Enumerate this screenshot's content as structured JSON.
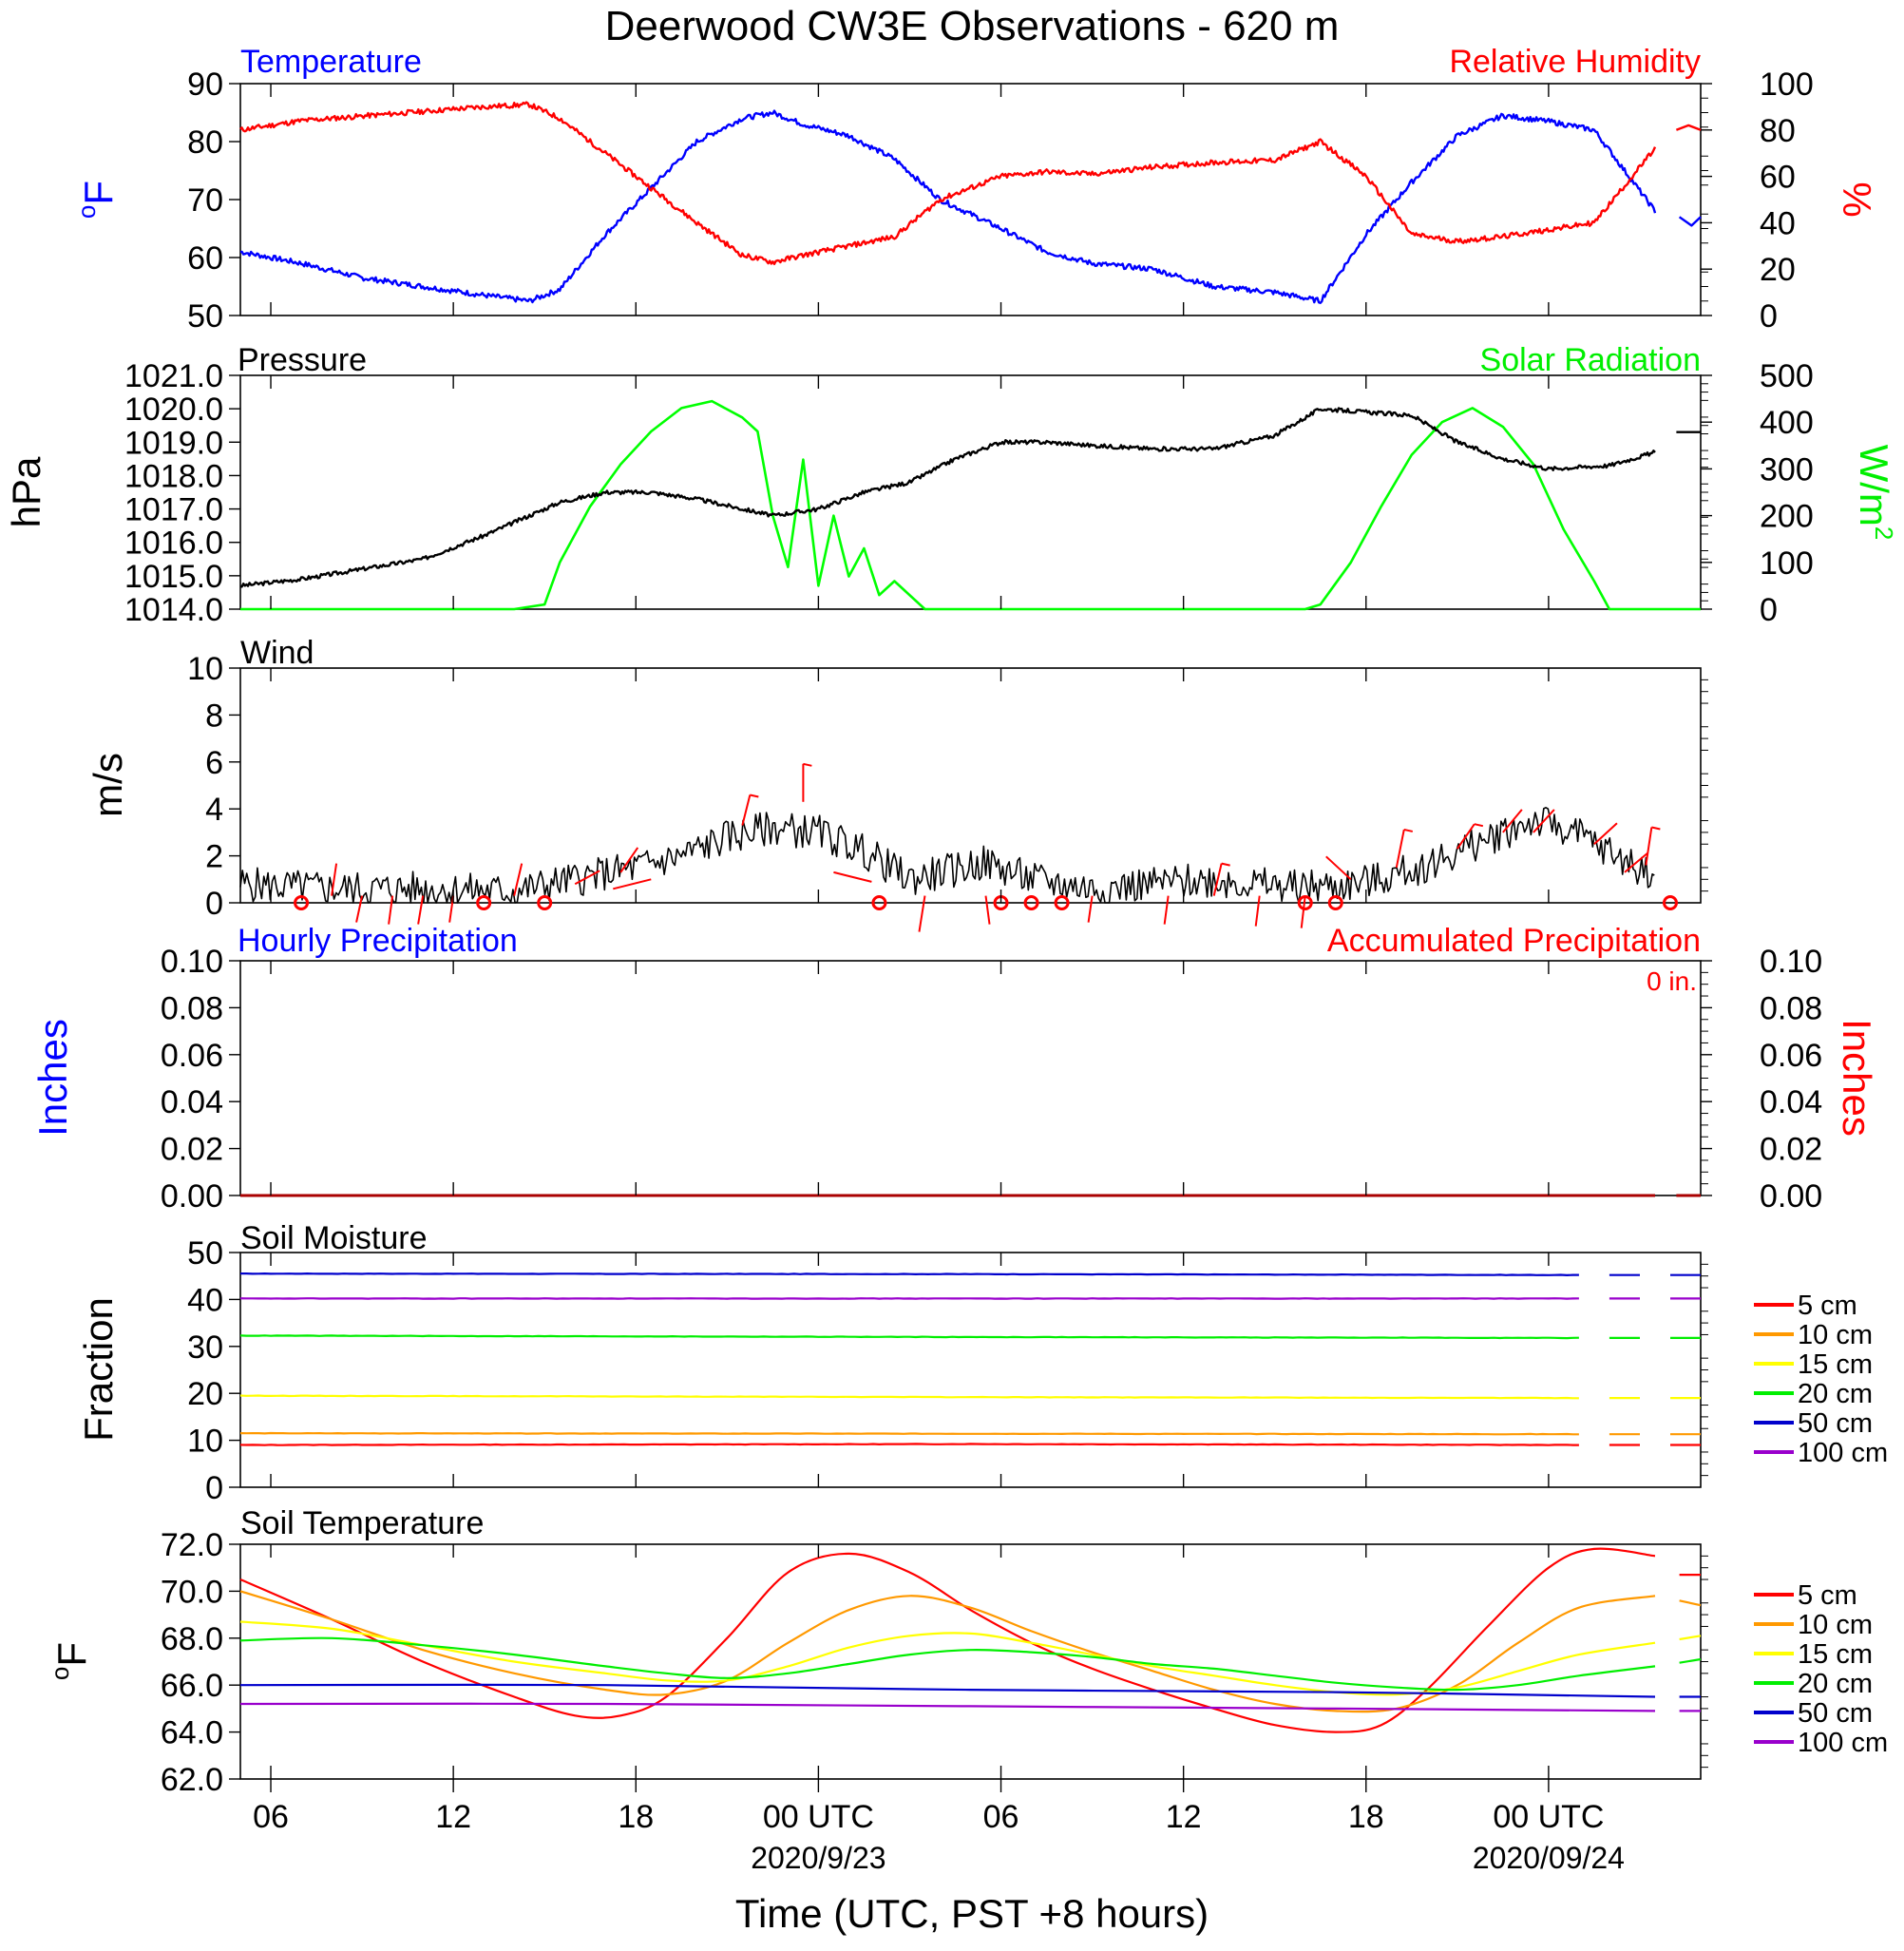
{
  "title": "Deerwood CW3E Observations - 620 m",
  "xaxis": {
    "label": "Time (UTC, PST +8 hours)",
    "ticks": [
      {
        "hour": 6,
        "label": "06",
        "date": ""
      },
      {
        "hour": 12,
        "label": "12",
        "date": ""
      },
      {
        "hour": 18,
        "label": "18",
        "date": ""
      },
      {
        "hour": 24,
        "label": "00 UTC",
        "date": "2020/9/23"
      },
      {
        "hour": 30,
        "label": "06",
        "date": ""
      },
      {
        "hour": 36,
        "label": "12",
        "date": ""
      },
      {
        "hour": 42,
        "label": "18",
        "date": ""
      },
      {
        "hour": 48,
        "label": "00 UTC",
        "date": "2020/09/24"
      }
    ]
  },
  "colors": {
    "temperature": "#0000ff",
    "humidity": "#ff0000",
    "pressure": "#000000",
    "solar": "#00ff00",
    "wind": "#000000",
    "barb": "#ff0000",
    "hourly_precip": "#0000ff",
    "accum_precip": "#ff0000",
    "depths": [
      "#ff0000",
      "#ff9900",
      "#ffff00",
      "#00ee00",
      "#0000cc",
      "#9900cc"
    ]
  },
  "panels": {
    "temp": {
      "left_title": "Temperature",
      "right_title": "Relative Humidity",
      "left_unit": "oF",
      "right_unit": "%",
      "left_ticks": [
        "90",
        "80",
        "70",
        "60",
        "50"
      ],
      "right_ticks": [
        "100",
        "80",
        "60",
        "40",
        "20",
        "0"
      ]
    },
    "pressure": {
      "left_title": "Pressure",
      "right_title": "Solar Radiation",
      "left_unit": "hPa",
      "right_unit": "W/m2",
      "left_ticks": [
        "1021.0",
        "1020.0",
        "1019.0",
        "1018.0",
        "1017.0",
        "1016.0",
        "1015.0",
        "1014.0"
      ],
      "right_ticks": [
        "500",
        "400",
        "300",
        "200",
        "100",
        "0"
      ]
    },
    "wind": {
      "left_title": "Wind",
      "left_unit": "m/s",
      "left_ticks": [
        "10",
        "8",
        "6",
        "4",
        "2",
        "0"
      ]
    },
    "precip": {
      "left_title": "Hourly Precipitation",
      "right_title": "Accumulated Precipitation",
      "total": "0 in.",
      "left_unit": "Inches",
      "right_unit": "Inches",
      "left_ticks": [
        "0.10",
        "0.08",
        "0.06",
        "0.04",
        "0.02",
        "0.00"
      ],
      "right_ticks": [
        "0.10",
        "0.08",
        "0.06",
        "0.04",
        "0.02",
        "0.00"
      ]
    },
    "soilm": {
      "left_title": "Soil Moisture",
      "left_unit": "Fraction",
      "left_ticks": [
        "50",
        "40",
        "30",
        "20",
        "10",
        "0"
      ],
      "legend": [
        "5 cm",
        "10 cm",
        "15 cm",
        "20 cm",
        "50 cm",
        "100 cm"
      ]
    },
    "soilt": {
      "left_title": "Soil Temperature",
      "left_unit": "oF",
      "left_ticks": [
        "72.0",
        "70.0",
        "68.0",
        "66.0",
        "64.0",
        "62.0"
      ],
      "legend": [
        "5 cm",
        "10 cm",
        "15 cm",
        "20 cm",
        "50 cm",
        "100 cm"
      ]
    }
  },
  "chart_data": [
    {
      "type": "line",
      "title": "Temperature / Relative Humidity",
      "x_units": "hours UTC since 2020-09-22 00:00",
      "xlim": [
        5,
        53
      ],
      "ylim": [
        50,
        90
      ],
      "y2lim": [
        0,
        100
      ],
      "series": [
        {
          "name": "Temperature",
          "axis": "left",
          "x": [
            5,
            7,
            9,
            11,
            13,
            14.5,
            15.5,
            17,
            18.5,
            20,
            21.5,
            22.5,
            23.5,
            25,
            26.5,
            28,
            30,
            31.5,
            33,
            35,
            37,
            39,
            40.5,
            42,
            43.5,
            45,
            46.5,
            48,
            49.5,
            51.5
          ],
          "y": [
            61,
            59,
            56.5,
            55,
            53.5,
            52.5,
            54.5,
            64,
            72,
            80,
            84,
            85,
            83,
            81,
            77,
            70,
            65,
            61,
            59,
            58,
            55,
            54,
            52.5,
            64,
            73,
            81,
            84.5,
            83.5,
            82,
            68
          ]
        },
        {
          "name": "Relative Humidity",
          "axis": "right",
          "x": [
            5,
            7,
            9,
            11,
            13,
            14.5,
            15.5,
            17,
            18.5,
            20,
            21.5,
            22.5,
            23.5,
            25,
            26.5,
            28,
            30,
            31.5,
            33,
            35,
            37,
            39,
            40.5,
            42,
            43.5,
            45,
            46.5,
            48,
            49.5,
            51.5
          ],
          "y": [
            80,
            84,
            86,
            88,
            90,
            91,
            85,
            70,
            55,
            40,
            26,
            23,
            26,
            30,
            34,
            50,
            60,
            62,
            61,
            64,
            66,
            67,
            75,
            60,
            35,
            32,
            34,
            37,
            40,
            72
          ]
        }
      ]
    },
    {
      "type": "line",
      "title": "Pressure / Solar Radiation",
      "x_units": "hours UTC since 2020-09-22 00:00",
      "xlim": [
        5,
        53
      ],
      "ylim": [
        1014,
        1021
      ],
      "y2lim": [
        0,
        500
      ],
      "series": [
        {
          "name": "Pressure",
          "axis": "left",
          "x": [
            5,
            7,
            9,
            11,
            13,
            14.5,
            15.5,
            17,
            18.5,
            20,
            21.5,
            22.5,
            24,
            25.5,
            27,
            28.5,
            30,
            31.5,
            33,
            35,
            37,
            39,
            40.5,
            42,
            43.5,
            45,
            46.5,
            48,
            50,
            51.5
          ],
          "y": [
            1014.7,
            1014.9,
            1015.2,
            1015.5,
            1016.2,
            1016.8,
            1017.2,
            1017.5,
            1017.5,
            1017.3,
            1017.0,
            1016.8,
            1017.0,
            1017.5,
            1017.8,
            1018.5,
            1019.0,
            1019.0,
            1018.9,
            1018.8,
            1018.8,
            1019.2,
            1020.0,
            1019.9,
            1019.8,
            1019.0,
            1018.5,
            1018.2,
            1018.3,
            1018.7
          ]
        },
        {
          "name": "Solar Radiation",
          "axis": "right",
          "x": [
            5,
            14,
            15,
            15.5,
            16.5,
            17.5,
            18.5,
            19.5,
            20.5,
            21.5,
            22,
            22.5,
            23,
            23.5,
            24,
            24.5,
            25,
            25.5,
            26,
            26.5,
            27.5,
            40,
            40.5,
            41.5,
            42.5,
            43.5,
            44.5,
            45.5,
            46.5,
            47.5,
            48.5,
            49.5,
            50,
            53
          ],
          "y": [
            0,
            0,
            10,
            100,
            220,
            310,
            380,
            430,
            445,
            410,
            380,
            200,
            90,
            320,
            50,
            200,
            70,
            130,
            30,
            60,
            0,
            0,
            10,
            100,
            220,
            330,
            400,
            430,
            390,
            310,
            170,
            60,
            0,
            0
          ]
        }
      ]
    },
    {
      "type": "line",
      "title": "Wind",
      "x_units": "hours UTC since 2020-09-22 00:00",
      "xlim": [
        5,
        53
      ],
      "ylim": [
        0,
        10
      ],
      "series": [
        {
          "name": "Wind",
          "axis": "left",
          "x": [
            5,
            8,
            11,
            14,
            16,
            18,
            19.5,
            21,
            22.5,
            24,
            25.5,
            27,
            29.5,
            31,
            33,
            35,
            37,
            39,
            41,
            42.5,
            44,
            45.5,
            46.5,
            47.5,
            48.5,
            49.5,
            50.5,
            51.5
          ],
          "y": [
            0.8,
            0.6,
            0.6,
            0.5,
            1.0,
            1.5,
            2.0,
            2.8,
            3.2,
            3.0,
            2.2,
            1.0,
            1.7,
            1.0,
            0.6,
            0.8,
            1.0,
            0.7,
            0.7,
            1.0,
            1.6,
            2.4,
            3.0,
            3.5,
            3.2,
            2.5,
            1.8,
            1.2
          ]
        }
      ]
    },
    {
      "type": "line",
      "title": "Hourly Precipitation / Accumulated Precipitation",
      "x_units": "hours UTC since 2020-09-22 00:00",
      "xlim": [
        5,
        53
      ],
      "ylim": [
        0,
        0.1
      ],
      "y2lim": [
        0,
        0.1
      ],
      "series": [
        {
          "name": "Hourly Precipitation",
          "axis": "left",
          "x": [
            5,
            51.5
          ],
          "y": [
            0,
            0
          ]
        },
        {
          "name": "Accumulated Precipitation",
          "axis": "right",
          "x": [
            5,
            51.5
          ],
          "y": [
            0,
            0
          ]
        }
      ]
    },
    {
      "type": "line",
      "title": "Soil Moisture",
      "x_units": "hours UTC since 2020-09-22 00:00",
      "xlim": [
        5,
        53
      ],
      "ylim": [
        0,
        50
      ],
      "series": [
        {
          "name": "5 cm",
          "x": [
            5,
            29,
            49
          ],
          "y": [
            9,
            9.2,
            9
          ]
        },
        {
          "name": "10 cm",
          "x": [
            5,
            29,
            49
          ],
          "y": [
            11.5,
            11.4,
            11.3
          ]
        },
        {
          "name": "15 cm",
          "x": [
            5,
            29,
            49
          ],
          "y": [
            19.5,
            19.2,
            19
          ]
        },
        {
          "name": "20 cm",
          "x": [
            5,
            29,
            49
          ],
          "y": [
            32.3,
            32,
            31.8
          ]
        },
        {
          "name": "50 cm",
          "x": [
            5,
            29,
            49
          ],
          "y": [
            45.5,
            45.4,
            45.2
          ]
        },
        {
          "name": "100 cm",
          "x": [
            5,
            29,
            49
          ],
          "y": [
            40.2,
            40.2,
            40.2
          ]
        }
      ]
    },
    {
      "type": "line",
      "title": "Soil Temperature",
      "x_units": "hours UTC since 2020-09-22 00:00",
      "xlim": [
        5,
        53
      ],
      "ylim": [
        62,
        72
      ],
      "series": [
        {
          "name": "5 cm",
          "x": [
            5,
            8,
            11,
            14,
            16,
            17.5,
            19,
            21,
            23,
            25,
            27,
            29,
            31,
            33,
            35,
            37,
            39,
            41,
            42.5,
            44,
            46,
            48,
            49.5,
            51.5
          ],
          "y": [
            70.5,
            68.8,
            67.0,
            65.5,
            64.7,
            64.7,
            65.5,
            68.0,
            70.8,
            71.6,
            70.8,
            69.2,
            67.8,
            66.7,
            65.8,
            65.0,
            64.3,
            64.0,
            64.3,
            65.8,
            68.5,
            71.0,
            71.8,
            71.5
          ]
        },
        {
          "name": "10 cm",
          "x": [
            5,
            8,
            11,
            14,
            17,
            19,
            21,
            23,
            25,
            27,
            29,
            31,
            33,
            35,
            37,
            39,
            41,
            43,
            45,
            47,
            49,
            51.5
          ],
          "y": [
            70.0,
            68.8,
            67.5,
            66.5,
            65.8,
            65.6,
            66.2,
            67.8,
            69.2,
            69.8,
            69.3,
            68.3,
            67.4,
            66.6,
            65.8,
            65.2,
            64.9,
            65.0,
            66.0,
            67.8,
            69.3,
            69.8
          ]
        },
        {
          "name": "15 cm",
          "x": [
            5,
            8,
            11,
            14,
            17,
            19,
            21,
            23,
            25,
            27,
            29,
            31,
            33,
            35,
            37,
            39,
            41,
            43,
            45,
            47,
            49,
            51.5
          ],
          "y": [
            68.7,
            68.4,
            67.7,
            67.0,
            66.5,
            66.2,
            66.2,
            66.8,
            67.6,
            68.1,
            68.2,
            67.8,
            67.3,
            66.8,
            66.4,
            66.0,
            65.7,
            65.6,
            65.9,
            66.6,
            67.3,
            67.8
          ]
        },
        {
          "name": "20 cm",
          "x": [
            5,
            8,
            11,
            14,
            17,
            19,
            21,
            23,
            25,
            27,
            29,
            31,
            33,
            35,
            37,
            39,
            41,
            43,
            45,
            47,
            49,
            51.5
          ],
          "y": [
            67.9,
            68.0,
            67.7,
            67.3,
            66.8,
            66.5,
            66.3,
            66.5,
            66.9,
            67.3,
            67.5,
            67.4,
            67.2,
            66.9,
            66.7,
            66.4,
            66.1,
            65.9,
            65.8,
            66.0,
            66.4,
            66.8
          ]
        },
        {
          "name": "50 cm",
          "x": [
            5,
            17,
            29,
            41,
            51.5
          ],
          "y": [
            66.0,
            66.0,
            65.8,
            65.7,
            65.5
          ]
        },
        {
          "name": "100 cm",
          "x": [
            5,
            17,
            29,
            41,
            51.5
          ],
          "y": [
            65.2,
            65.2,
            65.1,
            65.0,
            64.9
          ]
        }
      ]
    }
  ]
}
